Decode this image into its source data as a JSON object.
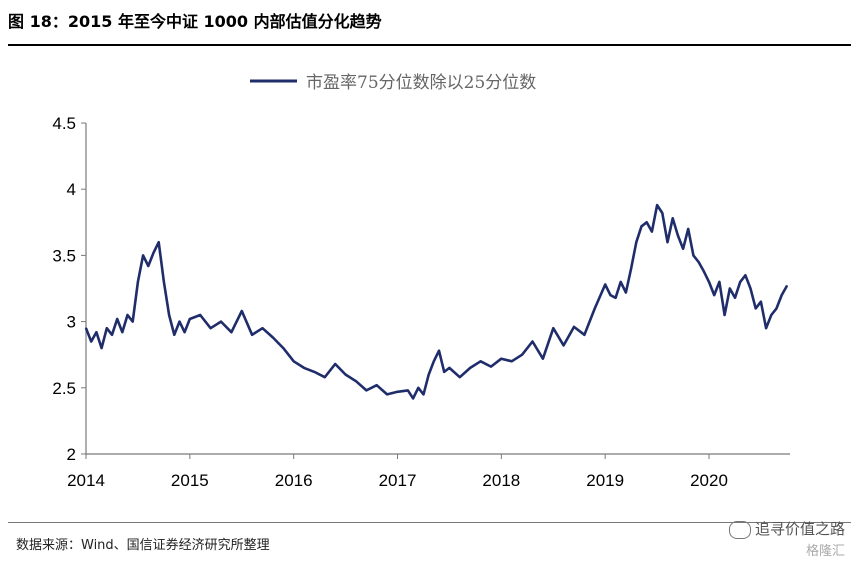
{
  "header": {
    "title": "图 18：2015 年至今中证 1000 内部估值分化趋势"
  },
  "footer": {
    "source": "数据来源：Wind、国信证券经济研究所整理"
  },
  "watermark": {
    "text": "追寻价值之路",
    "sub": "格隆汇"
  },
  "chart_data": {
    "type": "line",
    "title": "",
    "xlabel": "",
    "ylabel": "",
    "ylim": [
      2,
      4.5
    ],
    "xlim": [
      2014.0,
      2020.78
    ],
    "x_ticks": [
      "2014",
      "2015",
      "2016",
      "2017",
      "2018",
      "2019",
      "2020"
    ],
    "y_ticks": [
      "2",
      "2.5",
      "3",
      "3.5",
      "4",
      "4.5"
    ],
    "legend_position": "top-center",
    "grid": false,
    "color": "#1f2d6b",
    "series": [
      {
        "name": "市盈率75分位数除以25分位数",
        "x": [
          2014.0,
          2014.05,
          2014.1,
          2014.15,
          2014.2,
          2014.25,
          2014.3,
          2014.35,
          2014.4,
          2014.45,
          2014.5,
          2014.55,
          2014.6,
          2014.65,
          2014.7,
          2014.75,
          2014.8,
          2014.85,
          2014.9,
          2014.95,
          2015.0,
          2015.1,
          2015.2,
          2015.3,
          2015.4,
          2015.5,
          2015.6,
          2015.7,
          2015.8,
          2015.9,
          2016.0,
          2016.1,
          2016.2,
          2016.3,
          2016.4,
          2016.5,
          2016.6,
          2016.7,
          2016.8,
          2016.9,
          2017.0,
          2017.1,
          2017.15,
          2017.2,
          2017.25,
          2017.3,
          2017.35,
          2017.4,
          2017.45,
          2017.5,
          2017.6,
          2017.7,
          2017.8,
          2017.9,
          2018.0,
          2018.1,
          2018.2,
          2018.3,
          2018.4,
          2018.5,
          2018.6,
          2018.7,
          2018.8,
          2018.9,
          2019.0,
          2019.05,
          2019.1,
          2019.15,
          2019.2,
          2019.25,
          2019.3,
          2019.35,
          2019.4,
          2019.45,
          2019.5,
          2019.55,
          2019.6,
          2019.65,
          2019.7,
          2019.75,
          2019.8,
          2019.85,
          2019.9,
          2019.95,
          2020.0,
          2020.05,
          2020.1,
          2020.15,
          2020.2,
          2020.25,
          2020.3,
          2020.35,
          2020.4,
          2020.45,
          2020.5,
          2020.55,
          2020.6,
          2020.65,
          2020.7,
          2020.75
        ],
        "values": [
          2.95,
          2.85,
          2.92,
          2.8,
          2.95,
          2.9,
          3.02,
          2.92,
          3.05,
          3.0,
          3.3,
          3.5,
          3.42,
          3.52,
          3.6,
          3.3,
          3.05,
          2.9,
          3.0,
          2.92,
          3.02,
          3.05,
          2.95,
          3.0,
          2.92,
          3.08,
          2.9,
          2.95,
          2.88,
          2.8,
          2.7,
          2.65,
          2.62,
          2.58,
          2.68,
          2.6,
          2.55,
          2.48,
          2.52,
          2.45,
          2.47,
          2.48,
          2.42,
          2.5,
          2.45,
          2.6,
          2.7,
          2.78,
          2.62,
          2.65,
          2.58,
          2.65,
          2.7,
          2.66,
          2.72,
          2.7,
          2.75,
          2.85,
          2.72,
          2.95,
          2.82,
          2.96,
          2.9,
          3.1,
          3.28,
          3.2,
          3.18,
          3.3,
          3.22,
          3.4,
          3.6,
          3.72,
          3.75,
          3.68,
          3.88,
          3.82,
          3.6,
          3.78,
          3.65,
          3.55,
          3.7,
          3.5,
          3.45,
          3.38,
          3.3,
          3.2,
          3.3,
          3.05,
          3.25,
          3.18,
          3.3,
          3.35,
          3.25,
          3.1,
          3.15,
          2.95,
          3.05,
          3.1,
          3.2,
          3.27
        ]
      }
    ]
  }
}
